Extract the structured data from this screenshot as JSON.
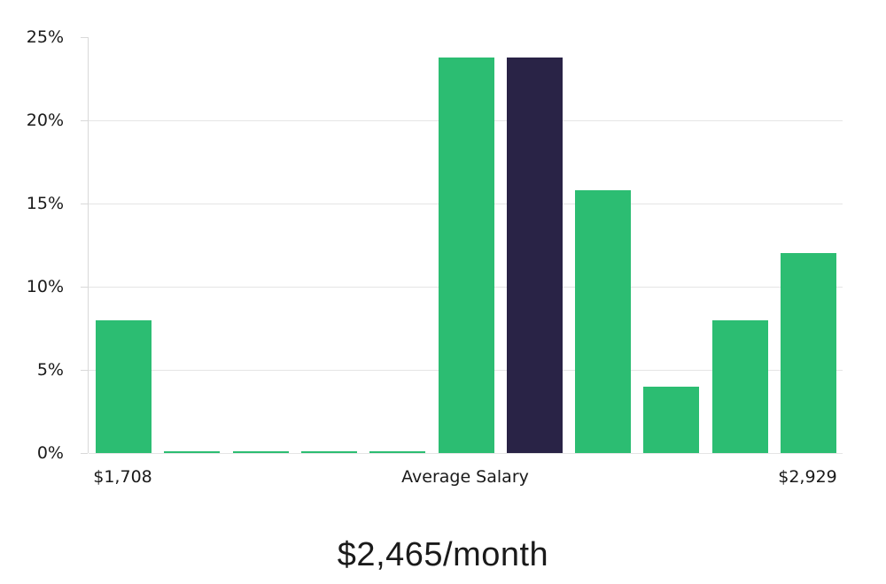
{
  "title": "$2,465/month",
  "colors": {
    "bar_green": "#2cbd72",
    "bar_dark": "#292346",
    "gridline": "#e5e5e5",
    "axis": "#d9d9d9",
    "text": "#1a1a1a"
  },
  "chart_data": {
    "type": "bar",
    "title": "$2,465/month",
    "xlabel": "",
    "ylabel": "",
    "ylim": [
      0,
      25
    ],
    "grid": true,
    "legend": "none",
    "yticks": [
      {
        "value": 0,
        "label": "0%",
        "gridline": true
      },
      {
        "value": 5,
        "label": "5%",
        "gridline": true
      },
      {
        "value": 10,
        "label": "10%",
        "gridline": true
      },
      {
        "value": 15,
        "label": "15%",
        "gridline": true
      },
      {
        "value": 20,
        "label": "20%",
        "gridline": true
      },
      {
        "value": 25,
        "label": "25%",
        "gridline": false
      }
    ],
    "bars": [
      {
        "value": 8.0,
        "color": "green"
      },
      {
        "value": 0.1,
        "color": "green"
      },
      {
        "value": 0.1,
        "color": "green"
      },
      {
        "value": 0.1,
        "color": "green"
      },
      {
        "value": 0.1,
        "color": "green"
      },
      {
        "value": 23.8,
        "color": "green"
      },
      {
        "value": 23.8,
        "color": "dark"
      },
      {
        "value": 15.8,
        "color": "green"
      },
      {
        "value": 4.0,
        "color": "green"
      },
      {
        "value": 8.0,
        "color": "green"
      },
      {
        "value": 12.0,
        "color": "green"
      }
    ],
    "highlight_bar_index": 6,
    "x_axis_labels": [
      {
        "text": "$1,708",
        "bar_index": 0
      },
      {
        "text": "Average Salary",
        "bar_index": 5
      },
      {
        "text": "$2,929",
        "bar_index": 10
      }
    ]
  },
  "layout_note": "salary distribution histogram"
}
